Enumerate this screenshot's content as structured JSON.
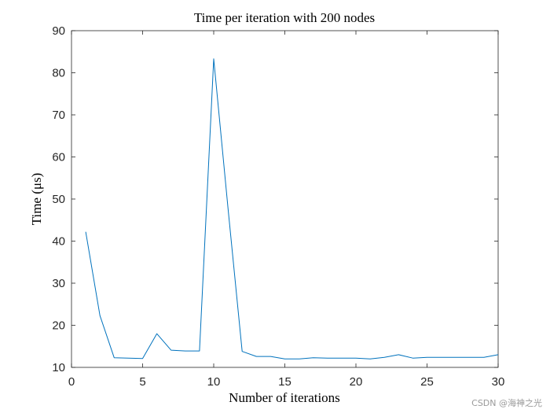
{
  "chart_data": {
    "type": "line",
    "title": "Time per iteration with 200 nodes",
    "xlabel": "Number of iterations",
    "ylabel": "Time (μs)",
    "xlim": [
      0,
      30
    ],
    "ylim": [
      10,
      90
    ],
    "xticks": [
      0,
      5,
      10,
      15,
      20,
      25,
      30
    ],
    "yticks": [
      10,
      20,
      30,
      40,
      50,
      60,
      70,
      80,
      90
    ],
    "grid": false,
    "series": [
      {
        "color": "#0072BD",
        "x": [
          1,
          2,
          3,
          4,
          5,
          6,
          7,
          8,
          9,
          10,
          11,
          12,
          13,
          14,
          15,
          16,
          17,
          18,
          19,
          20,
          21,
          22,
          23,
          24,
          25,
          26,
          27,
          28,
          29,
          30
        ],
        "y": [
          42.2,
          22.3,
          12.3,
          12.2,
          12.1,
          18.0,
          14.1,
          13.9,
          13.9,
          83.3,
          48.0,
          13.8,
          12.6,
          12.6,
          12.0,
          12.0,
          12.3,
          12.2,
          12.2,
          12.2,
          12.0,
          12.4,
          13.0,
          12.2,
          12.4,
          12.4,
          12.4,
          12.4,
          12.4,
          13.0
        ]
      }
    ]
  },
  "watermark": "CSDN @海神之光"
}
